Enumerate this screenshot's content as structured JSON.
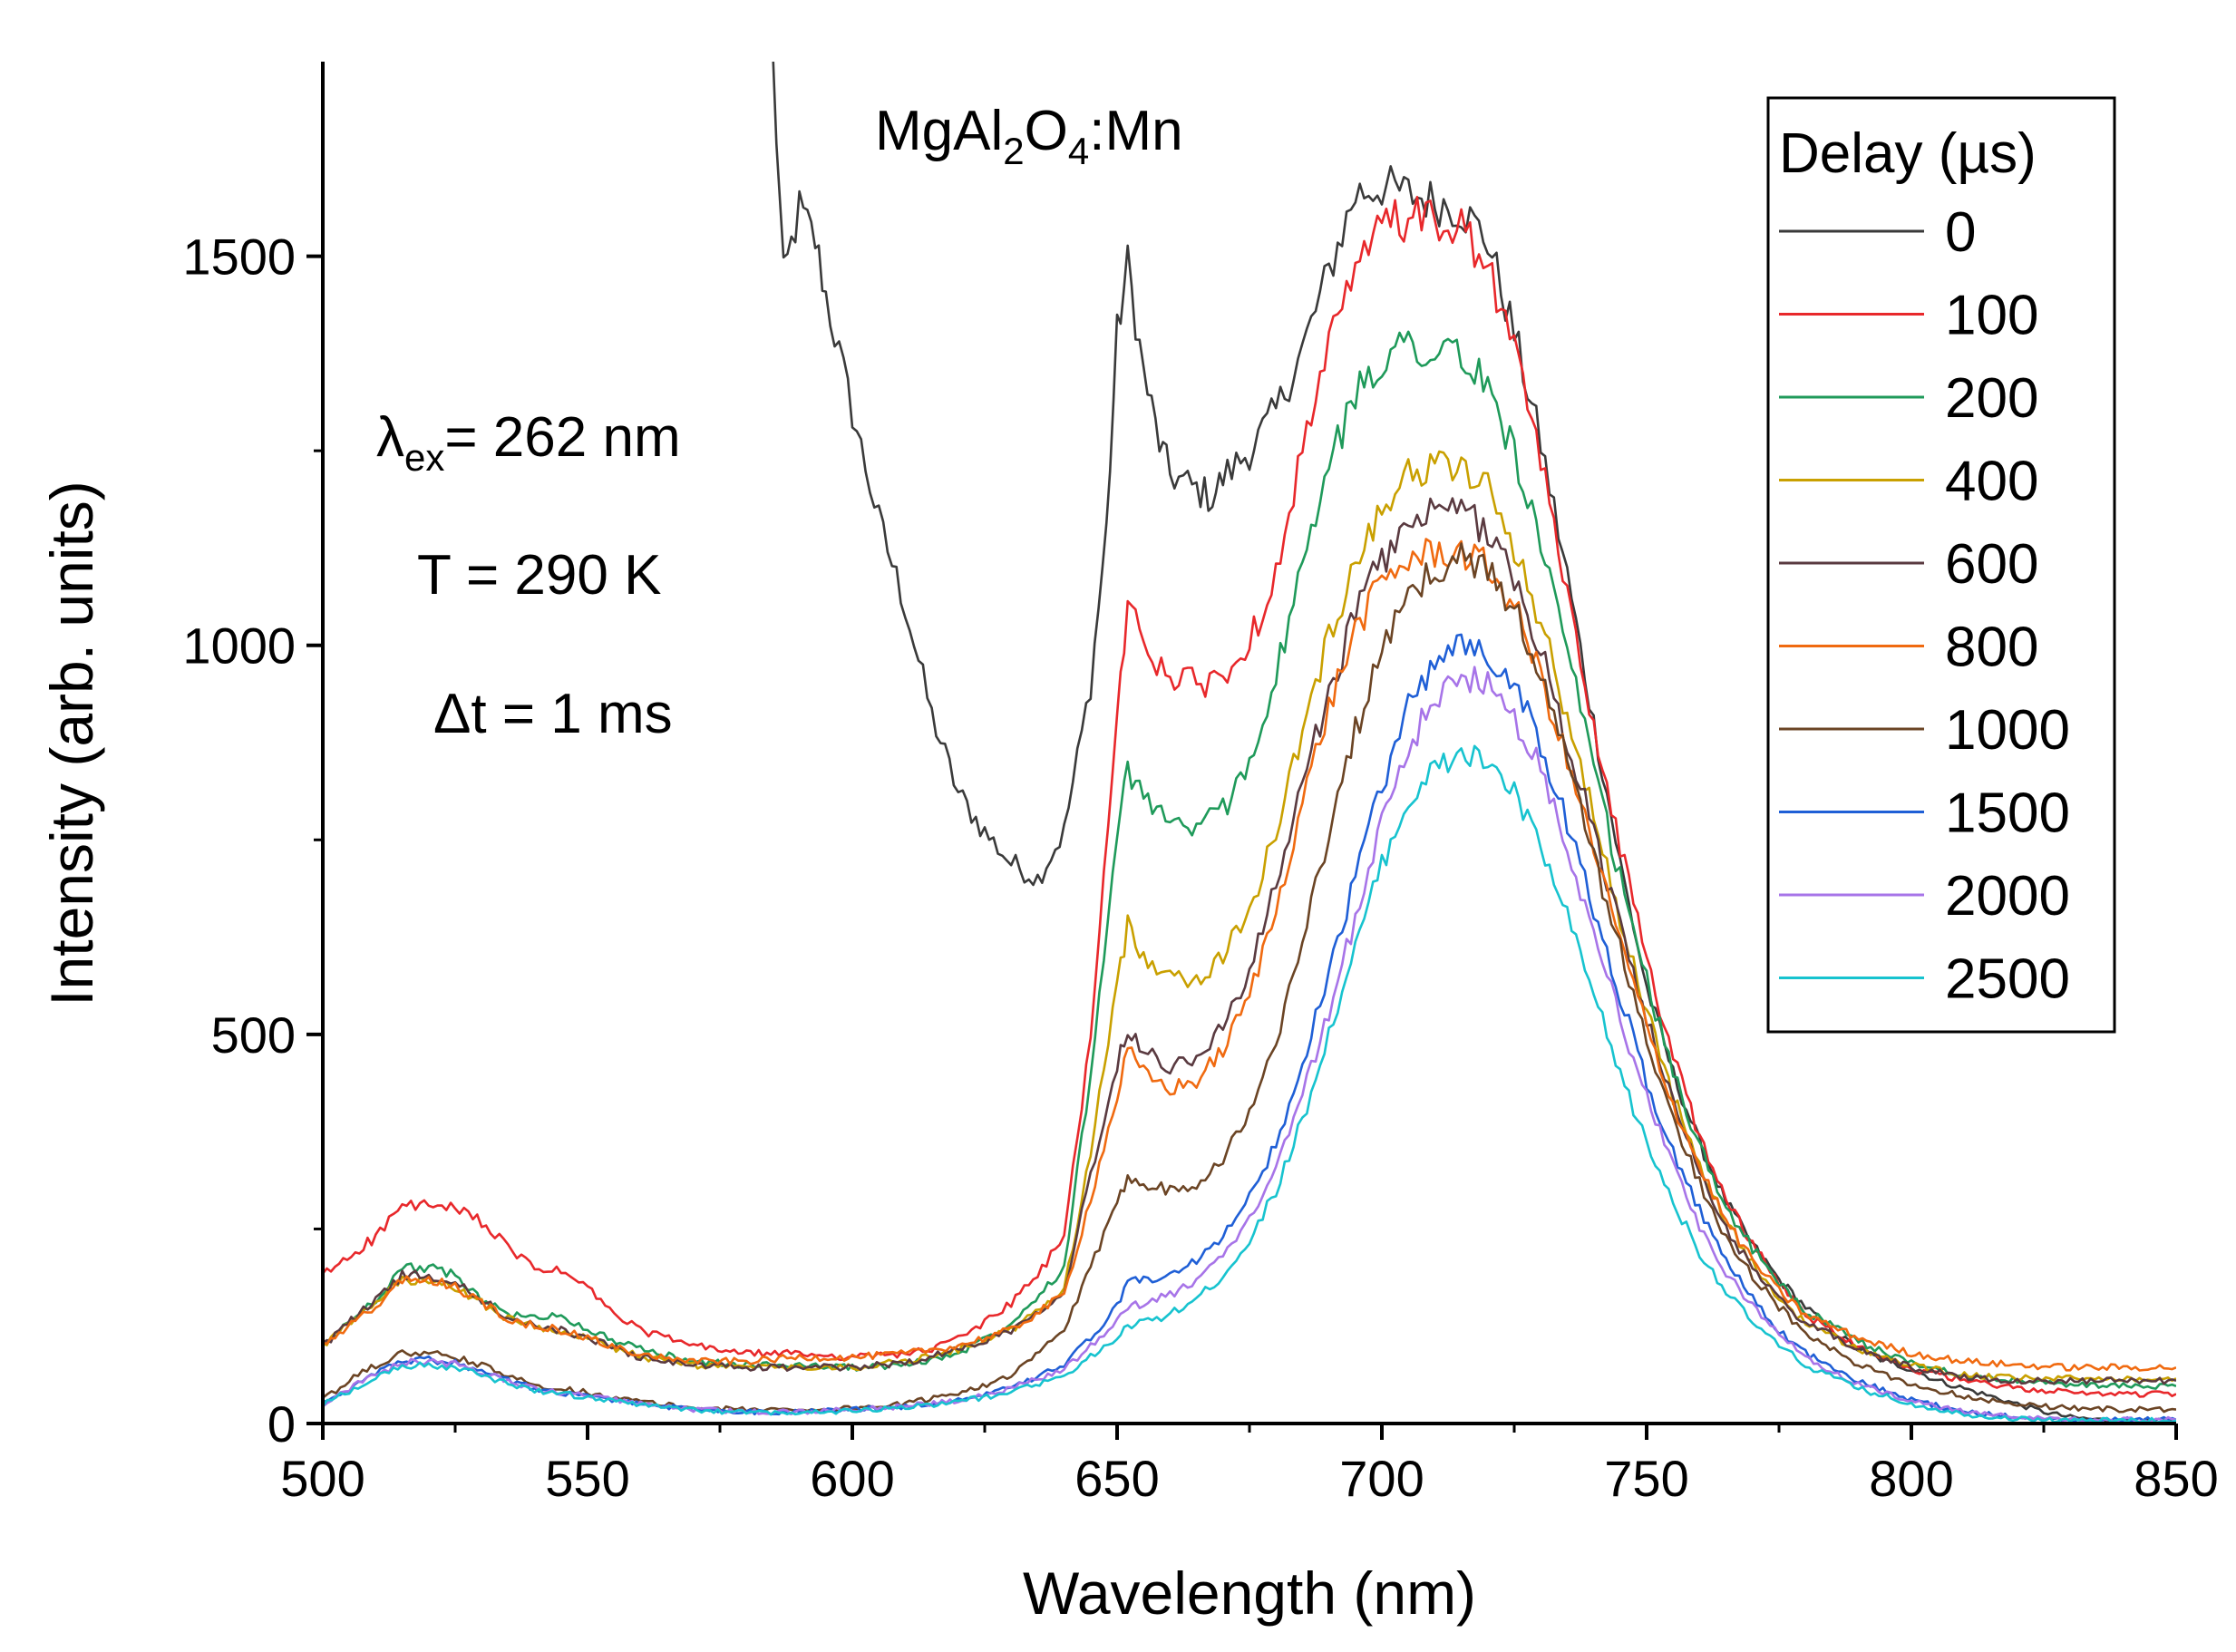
{
  "chart_data": {
    "type": "line",
    "xlabel": "Wavelength (nm)",
    "ylabel": "Intensity (arb. units)",
    "xlim": [
      500,
      850
    ],
    "ylim": [
      0,
      1750
    ],
    "xticks": [
      500,
      550,
      600,
      650,
      700,
      750,
      800,
      850
    ],
    "yticks": [
      0,
      500,
      1000,
      1500
    ],
    "grid": false,
    "legend": {
      "title": "Delay (µs)",
      "placement": "top-right"
    },
    "annotations": {
      "compound_main": "MgAl",
      "compound_sub1": "2",
      "compound_mid": "O",
      "compound_sub2": "4",
      "compound_end": ":Mn",
      "excitation_symbol": "λ",
      "excitation_sub": "ex",
      "excitation_value": "= 262 nm",
      "temperature": "T = 290 K",
      "gate": "Δt = 1 ms"
    },
    "series": [
      {
        "name": "0",
        "color": "#3a3a3a",
        "x": [
          585,
          587,
          590,
          593,
          595,
          600,
          605,
          610,
          615,
          620,
          625,
          630,
          635,
          640,
          645,
          648,
          650,
          652,
          655,
          658,
          660,
          665,
          668,
          670,
          675,
          680,
          685,
          690,
          695,
          700,
          705,
          710,
          715,
          720,
          725,
          730,
          735,
          740,
          745,
          750,
          755,
          760,
          765,
          770,
          775,
          780,
          785,
          790,
          795,
          800,
          805,
          810,
          815,
          820,
          825,
          830,
          835,
          840,
          845,
          850
        ],
        "y": [
          1750,
          1470,
          1560,
          1520,
          1450,
          1300,
          1160,
          1050,
          910,
          810,
          760,
          720,
          700,
          760,
          950,
          1150,
          1400,
          1490,
          1350,
          1260,
          1220,
          1200,
          1190,
          1215,
          1250,
          1300,
          1380,
          1480,
          1580,
          1590,
          1580,
          1570,
          1560,
          1520,
          1400,
          1260,
          1090,
          900,
          720,
          560,
          450,
          360,
          285,
          230,
          185,
          150,
          120,
          95,
          80,
          70,
          55,
          45,
          35,
          25,
          15,
          8,
          5,
          4,
          3,
          3
        ]
      },
      {
        "name": "100",
        "color": "#e8282b",
        "x": [
          500,
          510,
          515,
          520,
          525,
          530,
          535,
          540,
          545,
          550,
          555,
          560,
          570,
          580,
          590,
          600,
          610,
          615,
          620,
          625,
          630,
          635,
          640,
          645,
          650,
          652,
          655,
          660,
          665,
          670,
          675,
          680,
          685,
          690,
          695,
          700,
          705,
          710,
          715,
          720,
          725,
          730,
          735,
          740,
          745,
          750,
          755,
          760,
          765,
          770,
          775,
          780,
          790,
          800,
          810,
          820,
          830,
          840,
          850
        ],
        "y": [
          190,
          240,
          280,
          280,
          275,
          260,
          225,
          200,
          195,
          175,
          140,
          120,
          100,
          90,
          90,
          85,
          90,
          95,
          110,
          130,
          155,
          190,
          240,
          500,
          900,
          1060,
          1000,
          960,
          950,
          960,
          1000,
          1100,
          1250,
          1380,
          1480,
          1540,
          1550,
          1540,
          1540,
          1480,
          1380,
          1240,
          1060,
          900,
          740,
          600,
          470,
          370,
          290,
          230,
          180,
          140,
          100,
          70,
          55,
          45,
          40,
          38,
          38
        ]
      },
      {
        "name": "200",
        "color": "#1f9a5a",
        "x": [
          500,
          510,
          515,
          520,
          525,
          530,
          535,
          540,
          545,
          550,
          560,
          570,
          580,
          590,
          600,
          610,
          620,
          630,
          640,
          645,
          650,
          652,
          655,
          660,
          665,
          670,
          675,
          680,
          685,
          690,
          695,
          700,
          705,
          710,
          715,
          720,
          725,
          730,
          735,
          740,
          745,
          750,
          755,
          760,
          765,
          770,
          775,
          780,
          790,
          800,
          810,
          820,
          830,
          840,
          850
        ],
        "y": [
          100,
          160,
          200,
          200,
          190,
          160,
          140,
          135,
          140,
          120,
          95,
          80,
          75,
          75,
          72,
          75,
          90,
          130,
          200,
          450,
          750,
          840,
          800,
          780,
          760,
          790,
          850,
          960,
          1100,
          1230,
          1320,
          1370,
          1390,
          1380,
          1370,
          1330,
          1250,
          1130,
          990,
          840,
          700,
          570,
          450,
          355,
          280,
          225,
          180,
          145,
          105,
          78,
          62,
          55,
          50,
          48,
          48
        ]
      },
      {
        "name": "400",
        "color": "#c9a000",
        "x": [
          500,
          510,
          515,
          520,
          525,
          530,
          535,
          540,
          545,
          550,
          560,
          570,
          580,
          590,
          600,
          610,
          620,
          630,
          640,
          645,
          650,
          652,
          655,
          660,
          665,
          670,
          675,
          680,
          685,
          690,
          695,
          700,
          705,
          710,
          715,
          720,
          725,
          730,
          735,
          740,
          745,
          750,
          755,
          760,
          765,
          770,
          775,
          780,
          790,
          800,
          810,
          820,
          830,
          840,
          850
        ],
        "y": [
          100,
          155,
          185,
          180,
          175,
          155,
          135,
          125,
          120,
          110,
          85,
          75,
          72,
          72,
          72,
          80,
          95,
          120,
          170,
          350,
          560,
          640,
          600,
          580,
          570,
          600,
          660,
          760,
          890,
          1010,
          1110,
          1180,
          1220,
          1230,
          1230,
          1200,
          1130,
          1030,
          910,
          780,
          650,
          530,
          420,
          330,
          260,
          205,
          160,
          130,
          95,
          75,
          62,
          58,
          58,
          58,
          58
        ]
      },
      {
        "name": "600",
        "color": "#5a3a40",
        "x": [
          500,
          510,
          515,
          520,
          525,
          530,
          535,
          540,
          545,
          550,
          560,
          570,
          580,
          590,
          600,
          610,
          620,
          630,
          640,
          645,
          650,
          652,
          655,
          660,
          665,
          670,
          675,
          680,
          685,
          690,
          695,
          700,
          705,
          710,
          715,
          720,
          725,
          730,
          735,
          740,
          745,
          750,
          755,
          760,
          765,
          770,
          775,
          780,
          790,
          800,
          810,
          820,
          830,
          840,
          850
        ],
        "y": [
          100,
          160,
          190,
          190,
          180,
          160,
          135,
          125,
          120,
          110,
          85,
          75,
          72,
          72,
          72,
          78,
          95,
          120,
          170,
          320,
          460,
          510,
          480,
          460,
          470,
          510,
          580,
          690,
          820,
          940,
          1040,
          1110,
          1150,
          1170,
          1170,
          1150,
          1090,
          990,
          880,
          760,
          640,
          520,
          410,
          320,
          250,
          200,
          160,
          130,
          95,
          72,
          60,
          55,
          55,
          55,
          55
        ]
      },
      {
        "name": "800",
        "color": "#f06a10",
        "x": [
          500,
          510,
          515,
          520,
          525,
          530,
          535,
          540,
          545,
          550,
          560,
          570,
          580,
          590,
          600,
          610,
          620,
          630,
          640,
          645,
          650,
          652,
          655,
          660,
          665,
          670,
          675,
          680,
          685,
          690,
          695,
          700,
          705,
          710,
          715,
          720,
          725,
          730,
          735,
          740,
          745,
          750,
          755,
          760,
          765,
          770,
          775,
          780,
          790,
          800,
          810,
          820,
          830,
          840,
          850
        ],
        "y": [
          100,
          150,
          185,
          185,
          175,
          155,
          135,
          125,
          120,
          110,
          88,
          80,
          80,
          85,
          85,
          90,
          100,
          120,
          165,
          290,
          420,
          480,
          450,
          430,
          440,
          480,
          550,
          660,
          800,
          920,
          1020,
          1080,
          1110,
          1120,
          1120,
          1100,
          1050,
          960,
          850,
          740,
          620,
          510,
          410,
          330,
          260,
          210,
          170,
          140,
          110,
          90,
          80,
          75,
          72,
          72,
          72
        ]
      },
      {
        "name": "1000",
        "color": "#6b4424",
        "x": [
          500,
          505,
          510,
          515,
          520,
          525,
          530,
          535,
          540,
          545,
          550,
          560,
          570,
          580,
          590,
          600,
          610,
          620,
          630,
          640,
          645,
          650,
          652,
          655,
          660,
          665,
          670,
          675,
          680,
          685,
          690,
          695,
          700,
          705,
          710,
          715,
          720,
          725,
          730,
          735,
          740,
          745,
          750,
          755,
          760,
          765,
          770,
          775,
          780,
          790,
          800,
          810,
          820,
          830,
          840,
          850
        ],
        "y": [
          30,
          55,
          75,
          90,
          90,
          85,
          75,
          60,
          50,
          45,
          40,
          28,
          20,
          18,
          18,
          20,
          25,
          40,
          60,
          120,
          200,
          280,
          320,
          310,
          300,
          310,
          340,
          400,
          490,
          620,
          760,
          890,
          990,
          1060,
          1100,
          1110,
          1100,
          1050,
          960,
          850,
          730,
          610,
          490,
          390,
          310,
          240,
          190,
          150,
          115,
          75,
          50,
          35,
          25,
          20,
          18,
          18
        ]
      },
      {
        "name": "1500",
        "color": "#1f5fd6",
        "x": [
          500,
          505,
          510,
          515,
          520,
          525,
          530,
          535,
          540,
          545,
          550,
          560,
          570,
          580,
          590,
          600,
          610,
          620,
          630,
          640,
          645,
          650,
          652,
          655,
          660,
          665,
          670,
          675,
          680,
          685,
          690,
          695,
          700,
          705,
          710,
          715,
          720,
          725,
          730,
          735,
          740,
          745,
          750,
          755,
          760,
          765,
          770,
          775,
          780,
          790,
          800,
          810,
          820,
          830,
          840,
          850
        ],
        "y": [
          25,
          45,
          65,
          80,
          82,
          78,
          68,
          55,
          45,
          40,
          35,
          25,
          18,
          15,
          15,
          18,
          22,
          30,
          45,
          75,
          110,
          150,
          180,
          185,
          190,
          210,
          240,
          290,
          360,
          460,
          580,
          700,
          820,
          920,
          980,
          1000,
          990,
          950,
          870,
          770,
          660,
          550,
          440,
          350,
          275,
          210,
          160,
          120,
          90,
          55,
          30,
          15,
          8,
          5,
          5,
          5
        ]
      },
      {
        "name": "2000",
        "color": "#a774e8",
        "x": [
          500,
          505,
          510,
          515,
          520,
          525,
          530,
          535,
          540,
          545,
          550,
          560,
          570,
          580,
          590,
          600,
          610,
          620,
          630,
          640,
          645,
          650,
          652,
          655,
          660,
          665,
          670,
          675,
          680,
          685,
          690,
          695,
          700,
          705,
          710,
          715,
          720,
          725,
          730,
          735,
          740,
          745,
          750,
          755,
          760,
          765,
          770,
          775,
          780,
          790,
          800,
          810,
          820,
          830,
          840,
          850
        ],
        "y": [
          25,
          45,
          62,
          78,
          80,
          76,
          66,
          54,
          44,
          40,
          35,
          25,
          18,
          15,
          15,
          18,
          22,
          30,
          45,
          70,
          100,
          130,
          150,
          155,
          165,
          185,
          215,
          260,
          330,
          420,
          530,
          650,
          770,
          870,
          930,
          960,
          950,
          910,
          840,
          740,
          630,
          520,
          420,
          330,
          255,
          195,
          150,
          115,
          85,
          50,
          28,
          15,
          8,
          5,
          5,
          5
        ]
      },
      {
        "name": "2500",
        "color": "#17c3cf",
        "x": [
          500,
          505,
          510,
          515,
          520,
          525,
          530,
          535,
          540,
          545,
          550,
          560,
          570,
          580,
          590,
          600,
          610,
          620,
          630,
          640,
          645,
          650,
          652,
          655,
          660,
          665,
          670,
          675,
          680,
          685,
          690,
          695,
          700,
          705,
          710,
          715,
          720,
          725,
          730,
          735,
          740,
          745,
          750,
          755,
          760,
          765,
          770,
          775,
          780,
          790,
          800,
          810,
          820,
          830,
          840,
          850
        ],
        "y": [
          25,
          42,
          60,
          74,
          76,
          72,
          62,
          52,
          42,
          38,
          34,
          24,
          17,
          14,
          14,
          16,
          20,
          28,
          40,
          62,
          85,
          110,
          125,
          130,
          140,
          160,
          190,
          235,
          300,
          390,
          500,
          610,
          720,
          800,
          840,
          860,
          850,
          810,
          740,
          650,
          550,
          450,
          360,
          285,
          220,
          170,
          130,
          100,
          75,
          45,
          25,
          12,
          6,
          4,
          4,
          4
        ]
      }
    ]
  }
}
